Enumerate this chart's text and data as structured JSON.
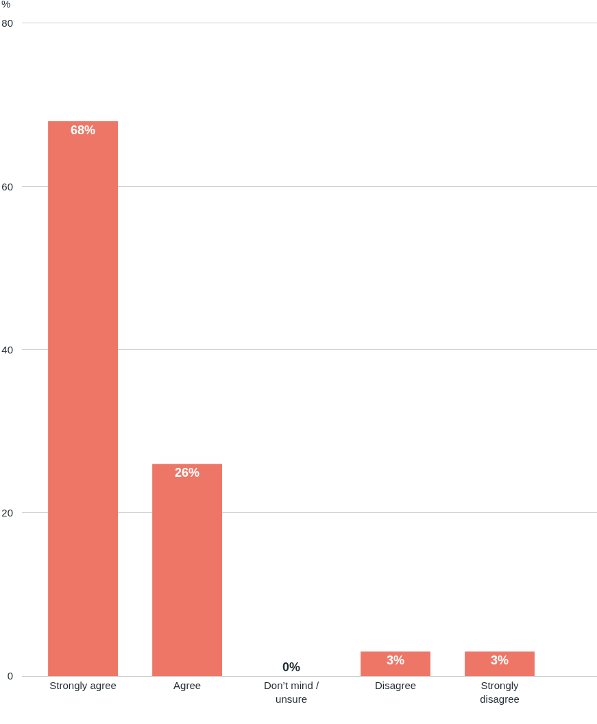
{
  "chart_data": {
    "type": "bar",
    "ylabel": "%",
    "categories": [
      "Strongly agree",
      "Agree",
      "Don’t mind / unsure",
      "Disagree",
      "Strongly disagree"
    ],
    "values": [
      68,
      26,
      0,
      3,
      3
    ],
    "value_labels": [
      "68%",
      "26%",
      "0%",
      "3%",
      "3%"
    ],
    "color": "#ee7667",
    "ylim": [
      0,
      80
    ],
    "yticks": [
      0,
      20,
      40,
      60,
      80
    ],
    "grid": "y"
  }
}
